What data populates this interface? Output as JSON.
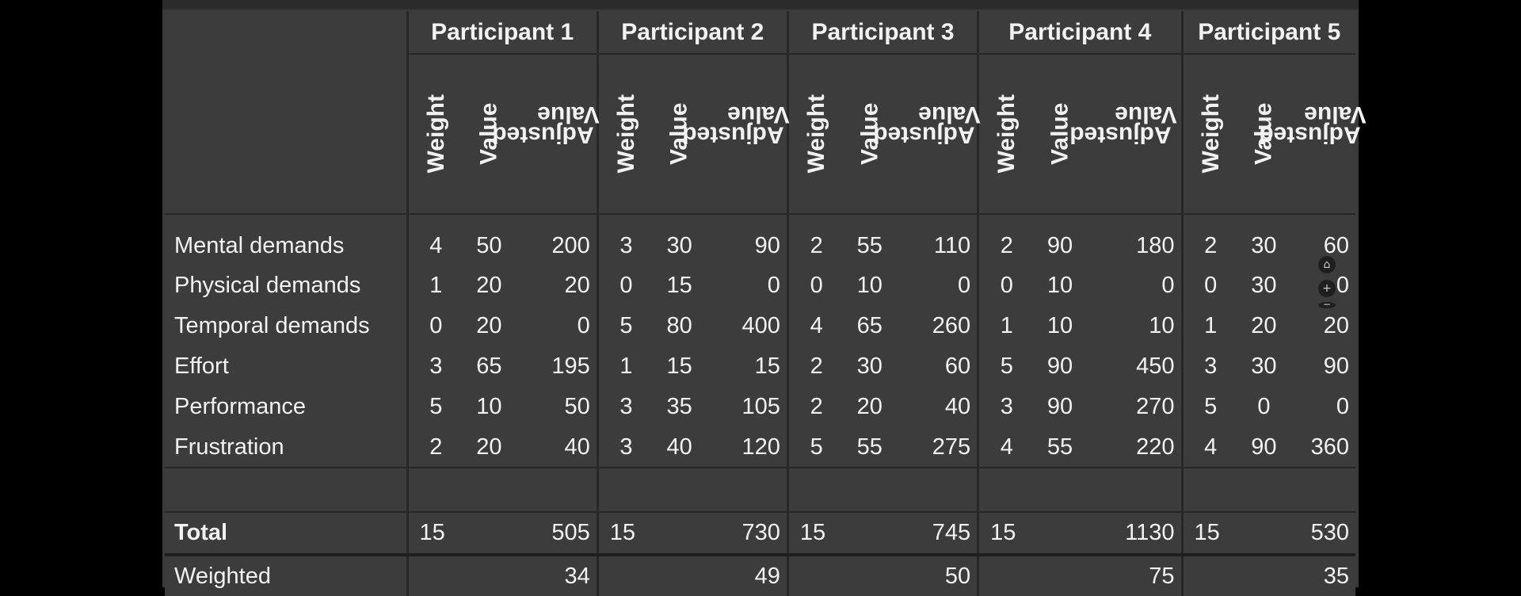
{
  "participants": [
    {
      "name": "Participant 1"
    },
    {
      "name": "Participant 2"
    },
    {
      "name": "Participant 3"
    },
    {
      "name": "Participant 4"
    },
    {
      "name": "Participant 5"
    }
  ],
  "subheaders": {
    "weight": "Weight",
    "value": "Value",
    "adjusted_line1": "Adjusted",
    "adjusted_line2": "Value"
  },
  "rows": [
    {
      "label": "Mental demands",
      "cells": [
        [
          "4",
          "50",
          "200"
        ],
        [
          "3",
          "30",
          "90"
        ],
        [
          "2",
          "55",
          "110"
        ],
        [
          "2",
          "90",
          "180"
        ],
        [
          "2",
          "30",
          "60"
        ]
      ]
    },
    {
      "label": "Physical demands",
      "cells": [
        [
          "1",
          "20",
          "20"
        ],
        [
          "0",
          "15",
          "0"
        ],
        [
          "0",
          "10",
          "0"
        ],
        [
          "0",
          "10",
          "0"
        ],
        [
          "0",
          "30",
          "0"
        ]
      ]
    },
    {
      "label": "Temporal demands",
      "cells": [
        [
          "0",
          "20",
          "0"
        ],
        [
          "5",
          "80",
          "400"
        ],
        [
          "4",
          "65",
          "260"
        ],
        [
          "1",
          "10",
          "10"
        ],
        [
          "1",
          "20",
          "20"
        ]
      ]
    },
    {
      "label": "Effort",
      "cells": [
        [
          "3",
          "65",
          "195"
        ],
        [
          "1",
          "15",
          "15"
        ],
        [
          "2",
          "30",
          "60"
        ],
        [
          "5",
          "90",
          "450"
        ],
        [
          "3",
          "30",
          "90"
        ]
      ]
    },
    {
      "label": "Performance",
      "cells": [
        [
          "5",
          "10",
          "50"
        ],
        [
          "3",
          "35",
          "105"
        ],
        [
          "2",
          "20",
          "40"
        ],
        [
          "3",
          "90",
          "270"
        ],
        [
          "5",
          "0",
          "0"
        ]
      ]
    },
    {
      "label": "Frustration",
      "cells": [
        [
          "2",
          "20",
          "40"
        ],
        [
          "3",
          "40",
          "120"
        ],
        [
          "5",
          "55",
          "275"
        ],
        [
          "4",
          "55",
          "220"
        ],
        [
          "4",
          "90",
          "360"
        ]
      ]
    }
  ],
  "total": {
    "label": "Total",
    "cells": [
      [
        "15",
        "505"
      ],
      [
        "15",
        "730"
      ],
      [
        "15",
        "745"
      ],
      [
        "15",
        "1130"
      ],
      [
        "15",
        "530"
      ]
    ]
  },
  "weighted": {
    "label": "Weighted",
    "cells": [
      "34",
      "49",
      "50",
      "75",
      "35"
    ]
  },
  "zoom_controls": {
    "home": "⌂",
    "plus": "+",
    "minus": "−"
  }
}
